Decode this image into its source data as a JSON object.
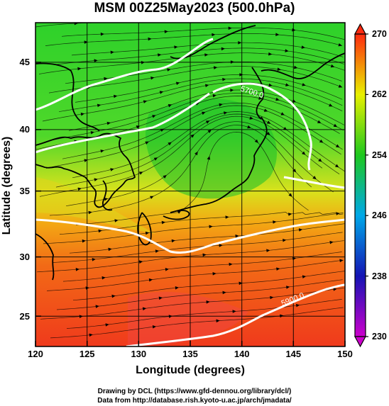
{
  "title": "MSM 00Z25May2023 (500.0hPa)",
  "x_axis": {
    "label": "Longitude (degrees)",
    "range": [
      120,
      150
    ],
    "ticks": [
      "120",
      "125",
      "130",
      "135",
      "140",
      "145",
      "150"
    ]
  },
  "y_axis": {
    "label": "Latitude  (degrees)",
    "range": [
      22.4,
      47.6
    ],
    "ticks": [
      "25",
      "30",
      "35",
      "40",
      "45"
    ]
  },
  "colorbar": {
    "range": [
      230,
      270
    ],
    "ticks": [
      "230",
      "238",
      "246",
      "254",
      "262",
      "270"
    ],
    "colors": [
      "#cc00cc",
      "#1010c0",
      "#00a0e0",
      "#20c820",
      "#f0f000",
      "#ff3010"
    ]
  },
  "contour_labels": [
    "5700.0",
    "5900.0"
  ],
  "credits": {
    "line1": "Drawing by DCL (https://www.gfd-dennou.org/library/dcl/)",
    "line2": "Data from http://database.rish.kyoto-u.ac.jp/arch/jmadata/"
  }
}
